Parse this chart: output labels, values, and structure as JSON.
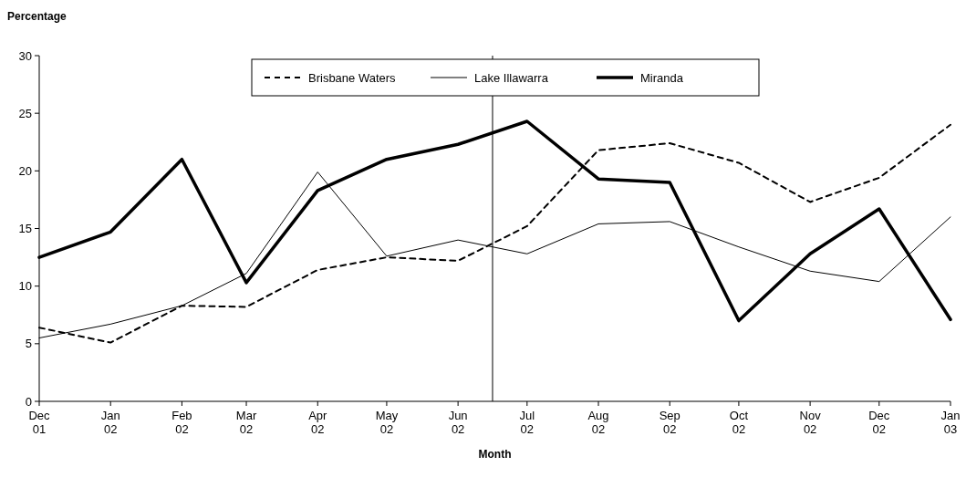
{
  "chart_data": {
    "type": "line",
    "ylabel": "Percentage",
    "xlabel": "Month",
    "x": [
      "2001-12",
      "2002-01",
      "2002-02",
      "2002-03",
      "2002-04",
      "2002-05",
      "2002-06",
      "2002-07",
      "2002-08",
      "2002-09",
      "2002-10",
      "2002-11",
      "2002-12",
      "2003-01"
    ],
    "xlim": [
      "2001-12",
      "2003-01"
    ],
    "xticks": [
      {
        "value": "2001-12",
        "label": "Dec\n01"
      },
      {
        "value": "2002-01",
        "label": "Jan\n02"
      },
      {
        "value": "2002-02",
        "label": "Feb\n02"
      },
      {
        "value": "2002-03",
        "label": "Mar\n02"
      },
      {
        "value": "2002-04",
        "label": "Apr\n02"
      },
      {
        "value": "2002-05",
        "label": "May\n02"
      },
      {
        "value": "2002-06",
        "label": "Jun\n02"
      },
      {
        "value": "2002-07",
        "label": "Jul\n02"
      },
      {
        "value": "2002-08",
        "label": "Aug\n02"
      },
      {
        "value": "2002-09",
        "label": "Sep\n02"
      },
      {
        "value": "2002-10",
        "label": "Oct\n02"
      },
      {
        "value": "2002-11",
        "label": "Nov\n02"
      },
      {
        "value": "2002-12",
        "label": "Dec\n02"
      },
      {
        "value": "2003-01",
        "label": "Jan\n03"
      }
    ],
    "ylim": [
      0,
      30
    ],
    "yticks": [
      0,
      5,
      10,
      15,
      20,
      25,
      30
    ],
    "grid": false,
    "legend": "top",
    "ref_lines": [
      {
        "axis": "x",
        "value": "2002-06-16",
        "color": "#000000"
      }
    ],
    "series": [
      {
        "name": "Brisbane Waters",
        "color": "#000000",
        "line_style": "dashed",
        "values": [
          6.4,
          5.1,
          8.3,
          8.2,
          11.4,
          12.5,
          12.2,
          15.2,
          21.8,
          22.4,
          20.7,
          17.3,
          19.4,
          24.0
        ]
      },
      {
        "name": "Lake Illawarra",
        "color": "#000000",
        "line_style": "solid",
        "values": [
          5.5,
          6.7,
          8.3,
          11.1,
          19.9,
          12.6,
          14.0,
          12.8,
          15.4,
          15.6,
          13.4,
          11.3,
          10.4,
          16.0
        ]
      },
      {
        "name": "Miranda",
        "color": "#000000",
        "line_style": "solid",
        "values": [
          12.5,
          14.7,
          21.0,
          10.3,
          18.3,
          21.0,
          22.3,
          24.3,
          19.3,
          19.0,
          7.0,
          12.8,
          16.7,
          7.1
        ]
      }
    ]
  }
}
